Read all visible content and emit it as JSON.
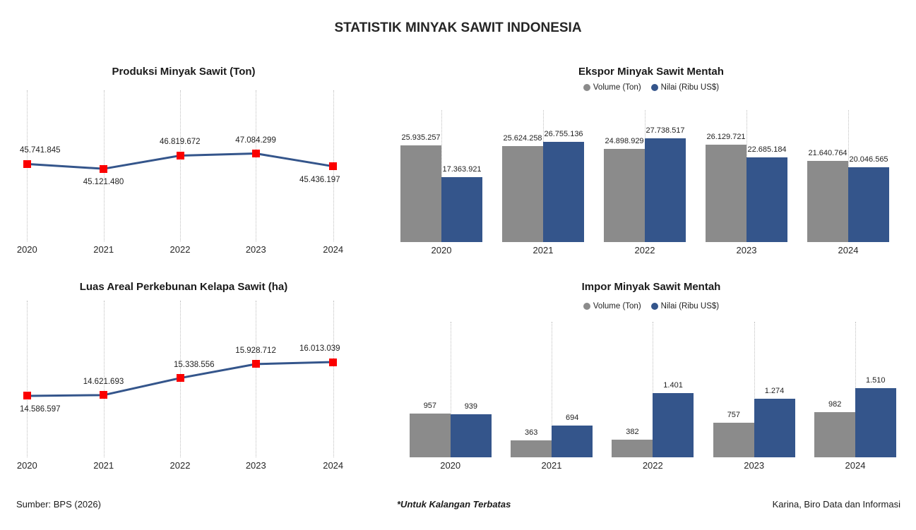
{
  "page": {
    "title": "STATISTIK MINYAK SAWIT INDONESIA",
    "footer": {
      "source": "Sumber: BPS (2026)",
      "note": "*Untuk Kalangan Terbatas",
      "credit": "Karina, Biro Data dan Informasi"
    }
  },
  "colors": {
    "bar_gray": "#8B8B8B",
    "bar_blue": "#34558B",
    "line_blue": "#34558B",
    "marker_red": "#FB0000",
    "gridline": "#BFBFBF",
    "text": "#1F1F1F"
  },
  "chart_data": [
    {
      "id": "produksi",
      "type": "line",
      "title": "Produksi Minyak Sawit (Ton)",
      "categories": [
        "2020",
        "2021",
        "2022",
        "2023",
        "2024"
      ],
      "values": [
        45741845,
        45121480,
        46819672,
        47084299,
        45436197
      ],
      "labels": [
        "45.741.845",
        "45.121.480",
        "46.819.672",
        "47.084.299",
        "45.436.197"
      ],
      "label_side": [
        "above",
        "below",
        "above",
        "above",
        "below"
      ],
      "ylim": [
        35800000,
        55200000
      ],
      "grid": "vertical-dotted",
      "line_color": "#34558B",
      "marker": "red-square",
      "marker_color": "#FB0000",
      "xlabel": "",
      "ylabel": ""
    },
    {
      "id": "ekspor",
      "type": "bar",
      "title": "Ekspor Minyak Sawit Mentah",
      "categories": [
        "2020",
        "2021",
        "2022",
        "2023",
        "2024"
      ],
      "series": [
        {
          "name": "Volume (Ton)",
          "color": "#8B8B8B",
          "values": [
            25935257,
            25624258,
            24898929,
            26129721,
            21640764
          ],
          "labels": [
            "25.935.257",
            "25.624.258",
            "24.898.929",
            "26.129.721",
            "21.640.764"
          ]
        },
        {
          "name": "Nilai (Ribu US$)",
          "color": "#34558B",
          "values": [
            17363921,
            26755136,
            27738517,
            22685184,
            20046565
          ],
          "labels": [
            "17.363.921",
            "26.755.136",
            "27.738.517",
            "22.685.184",
            "20.046.565"
          ]
        }
      ],
      "legend_position": "top",
      "ylim": [
        0,
        27738517
      ],
      "grid": "vertical-dotted"
    },
    {
      "id": "luas",
      "type": "line",
      "title": "Luas Areal Perkebunan Kelapa Sawit (ha)",
      "categories": [
        "2020",
        "2021",
        "2022",
        "2023",
        "2024"
      ],
      "values": [
        14586597,
        14621693,
        15338556,
        15928712,
        16013039
      ],
      "labels": [
        "14.586.597",
        "14.621.693",
        "15.338.556",
        "15.928.712",
        "16.013.039"
      ],
      "label_side": [
        "below",
        "above",
        "above",
        "above",
        "above"
      ],
      "ylim": [
        12000000,
        18600000
      ],
      "grid": "vertical-dotted",
      "line_color": "#34558B",
      "marker": "red-square",
      "marker_color": "#FB0000",
      "xlabel": "",
      "ylabel": ""
    },
    {
      "id": "impor",
      "type": "bar",
      "title": "Impor Minyak Sawit Mentah",
      "categories": [
        "2020",
        "2021",
        "2022",
        "2023",
        "2024"
      ],
      "series": [
        {
          "name": "Volume (Ton)",
          "color": "#8B8B8B",
          "values": [
            957,
            363,
            382,
            757,
            982
          ],
          "labels": [
            "957",
            "363",
            "382",
            "757",
            "982"
          ]
        },
        {
          "name": "Nilai (Ribu US$)",
          "color": "#34558B",
          "values": [
            939,
            694,
            1401,
            1274,
            1510
          ],
          "labels": [
            "939",
            "694",
            "1.401",
            "1.274",
            "1.510"
          ]
        }
      ],
      "legend_position": "top",
      "ylim": [
        0,
        1510
      ],
      "grid": "vertical-dotted"
    }
  ]
}
